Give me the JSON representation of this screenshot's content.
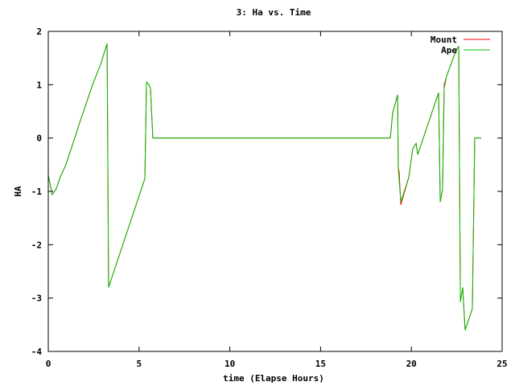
{
  "chart_data": {
    "type": "line",
    "title": "3: Ha vs. Time",
    "x_label": "time (Elapse Hours)",
    "y_label": "HA",
    "xlim": [
      0,
      25
    ],
    "xticks": [
      0,
      5,
      10,
      15,
      20,
      25
    ],
    "ylim": [
      -4,
      2
    ],
    "yticks": [
      -4,
      -3,
      -2,
      -1,
      0,
      1,
      2
    ],
    "legend": "top-right",
    "series": [
      {
        "name": "Mount",
        "color": "#ff0000",
        "x": [
          0,
          0.22,
          0.44,
          0.66,
          0.97,
          1.33,
          1.77,
          2.44,
          2.88,
          3.24,
          3.28,
          3.32,
          5.32,
          5.41,
          5.54,
          5.63,
          5.76,
          18.84,
          18.97,
          19.24,
          19.28,
          19.33,
          19.42,
          19.86,
          20.08,
          20.26,
          20.35,
          21.5,
          21.59,
          21.72,
          21.78,
          21.81,
          21.94,
          22.43,
          22.52,
          22.61,
          22.7,
          22.83,
          22.96,
          23.36,
          23.49,
          23.58,
          23.85
        ],
        "values": [
          -0.7,
          -1.06,
          -0.95,
          -0.73,
          -0.5,
          -0.13,
          0.33,
          1.0,
          1.38,
          1.77,
          -0.43,
          -2.8,
          -0.76,
          1.05,
          1.0,
          0.93,
          0,
          0,
          0.47,
          0.81,
          -0.55,
          -0.65,
          -1.25,
          -0.73,
          -0.2,
          -0.1,
          -0.31,
          0.85,
          -1.2,
          -0.95,
          0.45,
          1.0,
          1.16,
          1.61,
          1.68,
          1.71,
          -3.07,
          -2.8,
          -3.6,
          -3.2,
          0,
          0,
          0
        ]
      },
      {
        "name": "Ape",
        "color": "#00c000",
        "x": [
          0,
          0.22,
          0.44,
          0.66,
          0.97,
          1.33,
          1.77,
          2.44,
          2.88,
          3.24,
          3.28,
          3.32,
          5.32,
          5.41,
          5.54,
          5.63,
          5.76,
          18.84,
          18.97,
          19.24,
          19.28,
          19.42,
          19.86,
          20.08,
          20.26,
          20.35,
          21.5,
          21.59,
          21.72,
          21.81,
          21.94,
          22.43,
          22.52,
          22.61,
          22.7,
          22.83,
          22.96,
          23.36,
          23.49,
          23.58,
          23.85
        ],
        "values": [
          -0.7,
          -1.06,
          -0.95,
          -0.73,
          -0.5,
          -0.13,
          0.33,
          1.0,
          1.38,
          1.77,
          -0.43,
          -2.8,
          -0.76,
          1.05,
          1.0,
          0.93,
          0,
          0,
          0.47,
          0.81,
          -0.58,
          -1.2,
          -0.73,
          -0.2,
          -0.1,
          -0.31,
          0.85,
          -1.2,
          -0.95,
          0.93,
          1.16,
          1.61,
          1.68,
          1.71,
          -3.07,
          -2.8,
          -3.6,
          -3.2,
          0,
          0,
          0
        ]
      }
    ]
  }
}
